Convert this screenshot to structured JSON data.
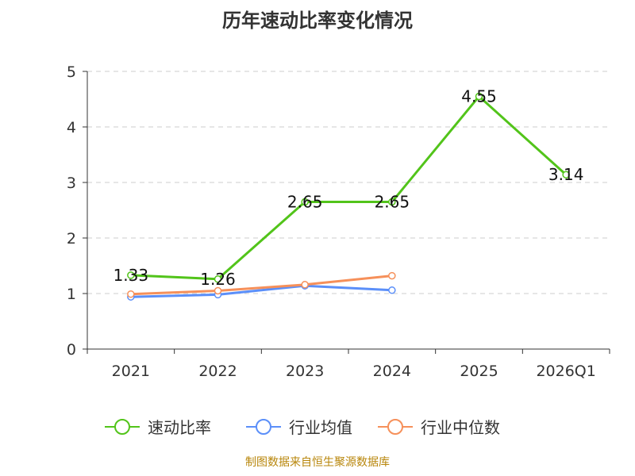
{
  "colors": {
    "speed_ratio": "#52c41a",
    "industry_mean": "#5b8ff9",
    "industry_median": "#f6905a",
    "grid": "#cccccc",
    "axis": "#333333",
    "footer": "#b8860b"
  },
  "chart_data": {
    "type": "line",
    "title": "历年速动比率变化情况",
    "categories": [
      "2021",
      "2022",
      "2023",
      "2024",
      "2025",
      "2026Q1"
    ],
    "ylim": [
      0,
      5
    ],
    "yticks": [
      0,
      1,
      2,
      3,
      4,
      5
    ],
    "grid": true,
    "legend_position": "bottom",
    "series": [
      {
        "name": "速动比率",
        "color_key": "speed_ratio",
        "values": [
          1.33,
          1.26,
          2.65,
          2.65,
          4.55,
          3.14
        ],
        "labels": [
          "1.33",
          "1.26",
          "2.65",
          "2.65",
          "4.55",
          "3.14"
        ]
      },
      {
        "name": "行业均值",
        "color_key": "industry_mean",
        "values": [
          0.94,
          0.98,
          1.14,
          1.06,
          null,
          null
        ]
      },
      {
        "name": "行业中位数",
        "color_key": "industry_median",
        "values": [
          0.99,
          1.05,
          1.16,
          1.32,
          null,
          null
        ]
      }
    ]
  },
  "footer": "制图数据来自恒生聚源数据库"
}
